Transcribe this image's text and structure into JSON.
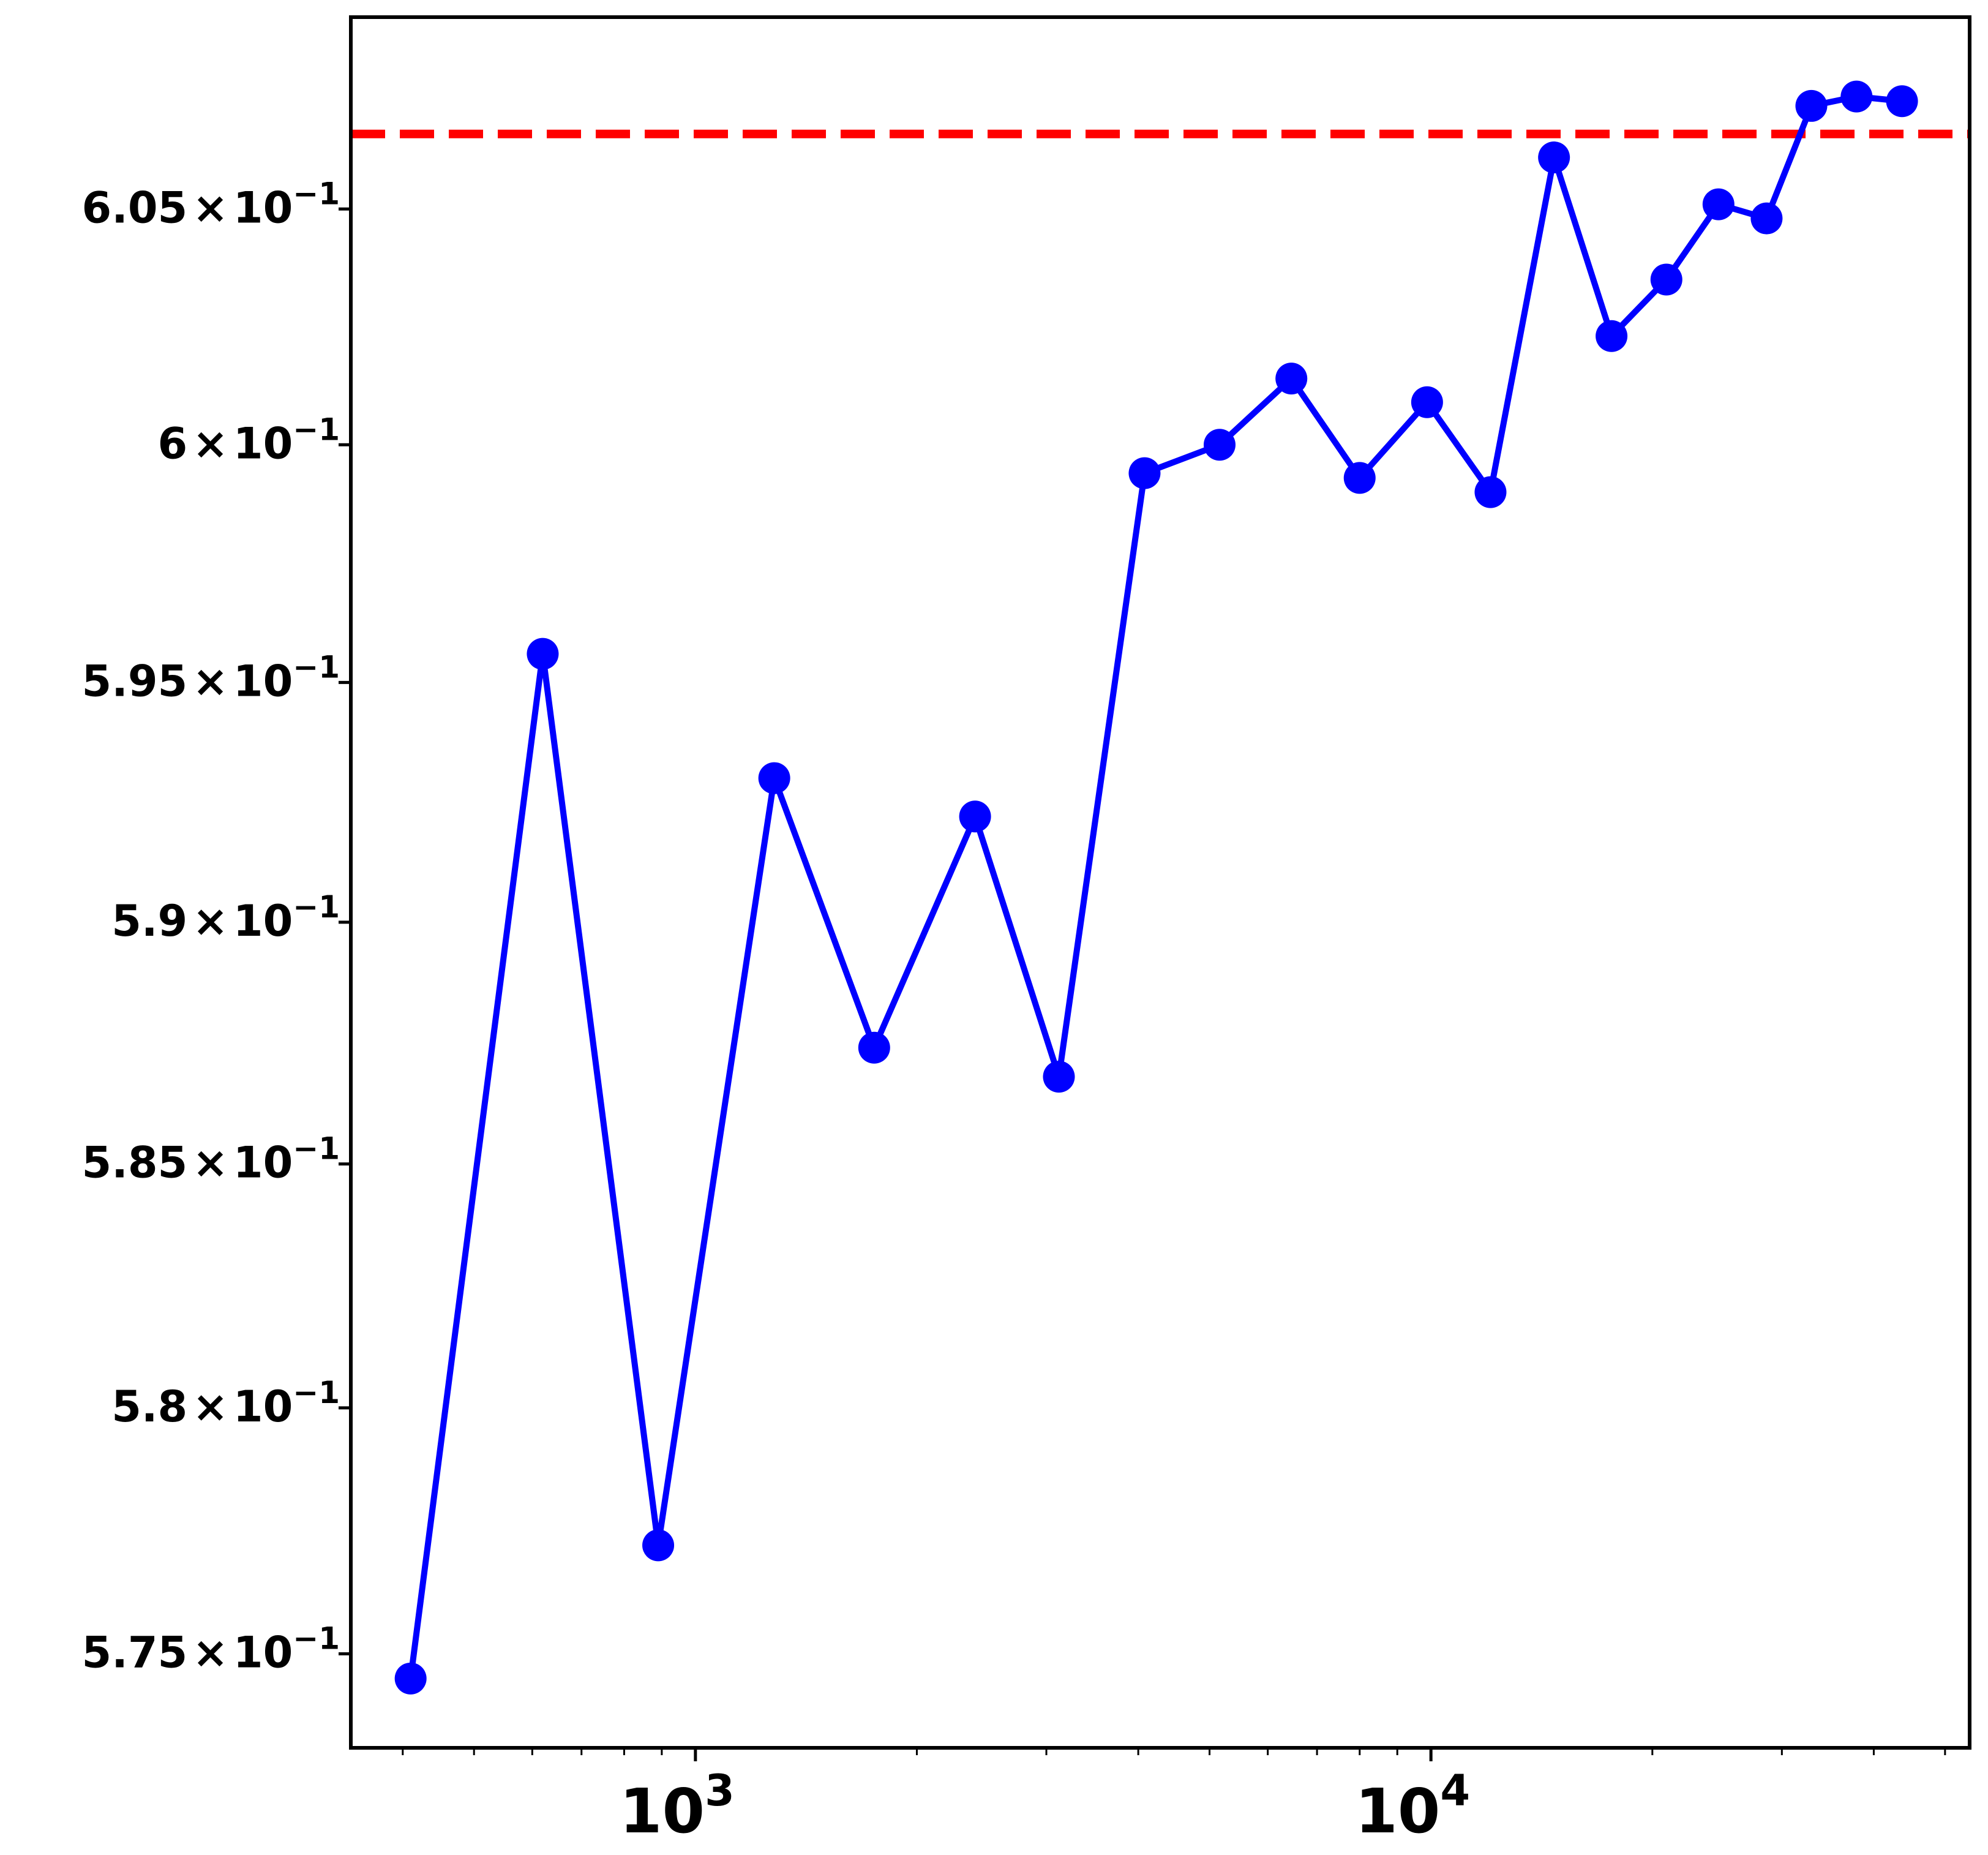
{
  "chart_data": {
    "type": "line",
    "title": "",
    "xlabel": "",
    "ylabel": "",
    "x_scale": "log",
    "y_scale": "log",
    "xlim": [
      340,
      54000
    ],
    "ylim": [
      0.5731,
      0.6091
    ],
    "grid": false,
    "legend": "none",
    "x_ticks": [
      {
        "value": 1000,
        "base": "10",
        "exp": "3"
      },
      {
        "value": 10000,
        "base": "10",
        "exp": "4"
      }
    ],
    "y_ticks": [
      {
        "value": 0.575,
        "mantissa": "5.75",
        "times": "×",
        "base": "10",
        "exp": "−1"
      },
      {
        "value": 0.58,
        "mantissa": "5.8",
        "times": "×",
        "base": "10",
        "exp": "−1"
      },
      {
        "value": 0.585,
        "mantissa": "5.85",
        "times": "×",
        "base": "10",
        "exp": "−1"
      },
      {
        "value": 0.59,
        "mantissa": "5.9",
        "times": "×",
        "base": "10",
        "exp": "−1"
      },
      {
        "value": 0.595,
        "mantissa": "5.95",
        "times": "×",
        "base": "10",
        "exp": "−1"
      },
      {
        "value": 0.6,
        "mantissa": "6",
        "times": "×",
        "base": "10",
        "exp": "−1"
      },
      {
        "value": 0.605,
        "mantissa": "6.05",
        "times": "×",
        "base": "10",
        "exp": "−1"
      }
    ],
    "series": [
      {
        "color": "#0000ff",
        "marker": "circle",
        "x": [
          410,
          620,
          890,
          1280,
          1750,
          2400,
          3120,
          4080,
          5160,
          6460,
          8000,
          9880,
          12050,
          14700,
          17600,
          20900,
          24600,
          28600,
          32900,
          37900,
          43700
        ],
        "y": [
          0.5745,
          0.5956,
          0.5772,
          0.593,
          0.5874,
          0.5922,
          0.5868,
          0.5994,
          0.6,
          0.6014,
          0.5993,
          0.6009,
          0.599,
          0.6061,
          0.6023,
          0.6035,
          0.6051,
          0.6048,
          0.6072,
          0.6074,
          0.6073
        ]
      }
    ],
    "reference_line": {
      "orientation": "horizontal",
      "y": 0.6066,
      "color": "#ff0000",
      "style": "dashed"
    }
  }
}
